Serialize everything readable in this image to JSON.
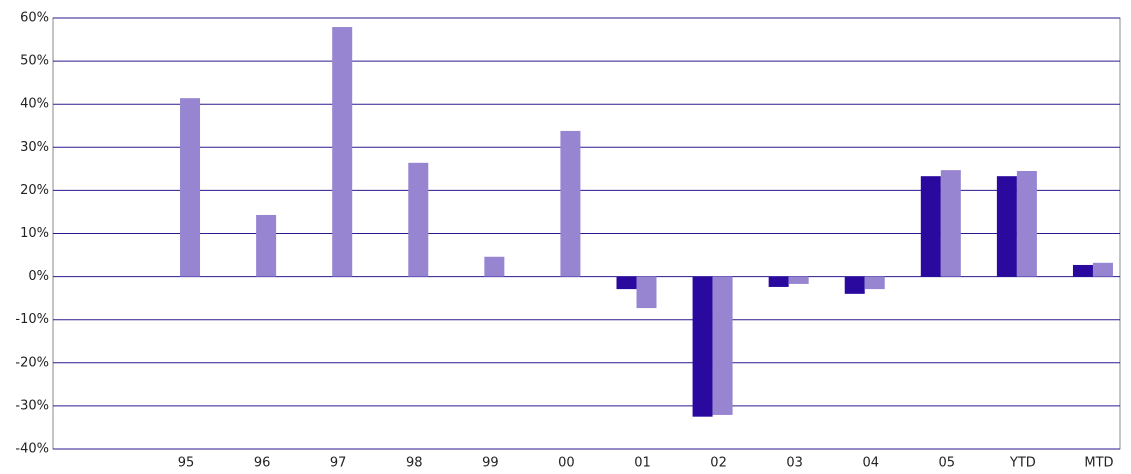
{
  "chart_data": {
    "type": "bar",
    "categories": [
      "95",
      "96",
      "97",
      "98",
      "99",
      "00",
      "01",
      "02",
      "03",
      "04",
      "05",
      "YTD",
      "MTD"
    ],
    "series": [
      {
        "color": "#2a0a9e",
        "values": [
          null,
          null,
          null,
          null,
          null,
          null,
          -2.9,
          -32.5,
          -2.4,
          -4.0,
          23.3,
          23.3,
          2.7
        ]
      },
      {
        "color": "#9785d2",
        "values": [
          41.4,
          14.3,
          57.9,
          26.4,
          4.6,
          33.8,
          -7.3,
          -32.1,
          -1.7,
          -2.9,
          24.7,
          24.5,
          3.2
        ]
      }
    ],
    "ylim": [
      -40,
      60
    ],
    "yticks": [
      {
        "value": -40,
        "label": "-40%"
      },
      {
        "value": -30,
        "label": "-30%"
      },
      {
        "value": -20,
        "label": "-20%"
      },
      {
        "value": -10,
        "label": "-10%"
      },
      {
        "value": 0,
        "label": "0%"
      },
      {
        "value": 10,
        "label": "10%"
      },
      {
        "value": 20,
        "label": "20%"
      },
      {
        "value": 30,
        "label": "30%"
      },
      {
        "value": 40,
        "label": "40%"
      },
      {
        "value": 50,
        "label": "50%"
      },
      {
        "value": 60,
        "label": "60%"
      }
    ],
    "grid": true,
    "grid_color": "#2a1a8f"
  }
}
